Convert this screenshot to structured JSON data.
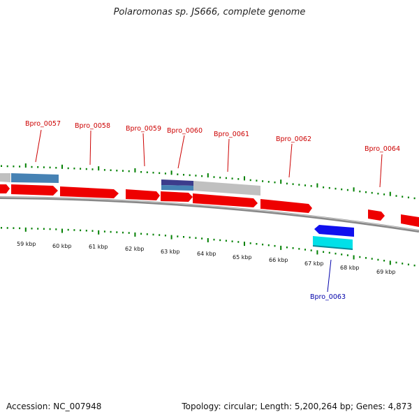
{
  "title": "Polaromonas sp. JS666, complete genome",
  "accession_label": "Accession: NC_007948",
  "summary_label": "Topology: circular; Length: 5,200,264 bp; Genes: 4,873",
  "scale_ticks": [
    "59 kbp",
    "60 kbp",
    "61 kbp",
    "62 kbp",
    "63 kbp",
    "64 kbp",
    "65 kbp",
    "66 kbp",
    "67 kbp",
    "68 kbp",
    "69 kbp"
  ],
  "gene_labels": [
    {
      "text": "Bpro_0057",
      "strand": "forward",
      "color": "#cc0000"
    },
    {
      "text": "Bpro_0058",
      "strand": "forward",
      "color": "#cc0000"
    },
    {
      "text": "Bpro_0059",
      "strand": "forward",
      "color": "#cc0000"
    },
    {
      "text": "Bpro_0060",
      "strand": "forward",
      "color": "#cc0000"
    },
    {
      "text": "Bpro_0061",
      "strand": "forward",
      "color": "#cc0000"
    },
    {
      "text": "Bpro_0062",
      "strand": "forward",
      "color": "#cc0000"
    },
    {
      "text": "Bpro_0063",
      "strand": "reverse",
      "color": "#0000aa"
    },
    {
      "text": "Bpro_0064",
      "strand": "forward",
      "color": "#cc0000"
    }
  ],
  "colors": {
    "forward_gene": "#ee0000",
    "reverse_gene": "#1010ee",
    "reverse_feature": "#00e0e8",
    "feature_blue": "#4682b4",
    "feature_navy": "#3c3c8c",
    "feature_gray": "#c0c0c0",
    "backbone": "#8a8a8a",
    "tick_dots": "#008000"
  }
}
